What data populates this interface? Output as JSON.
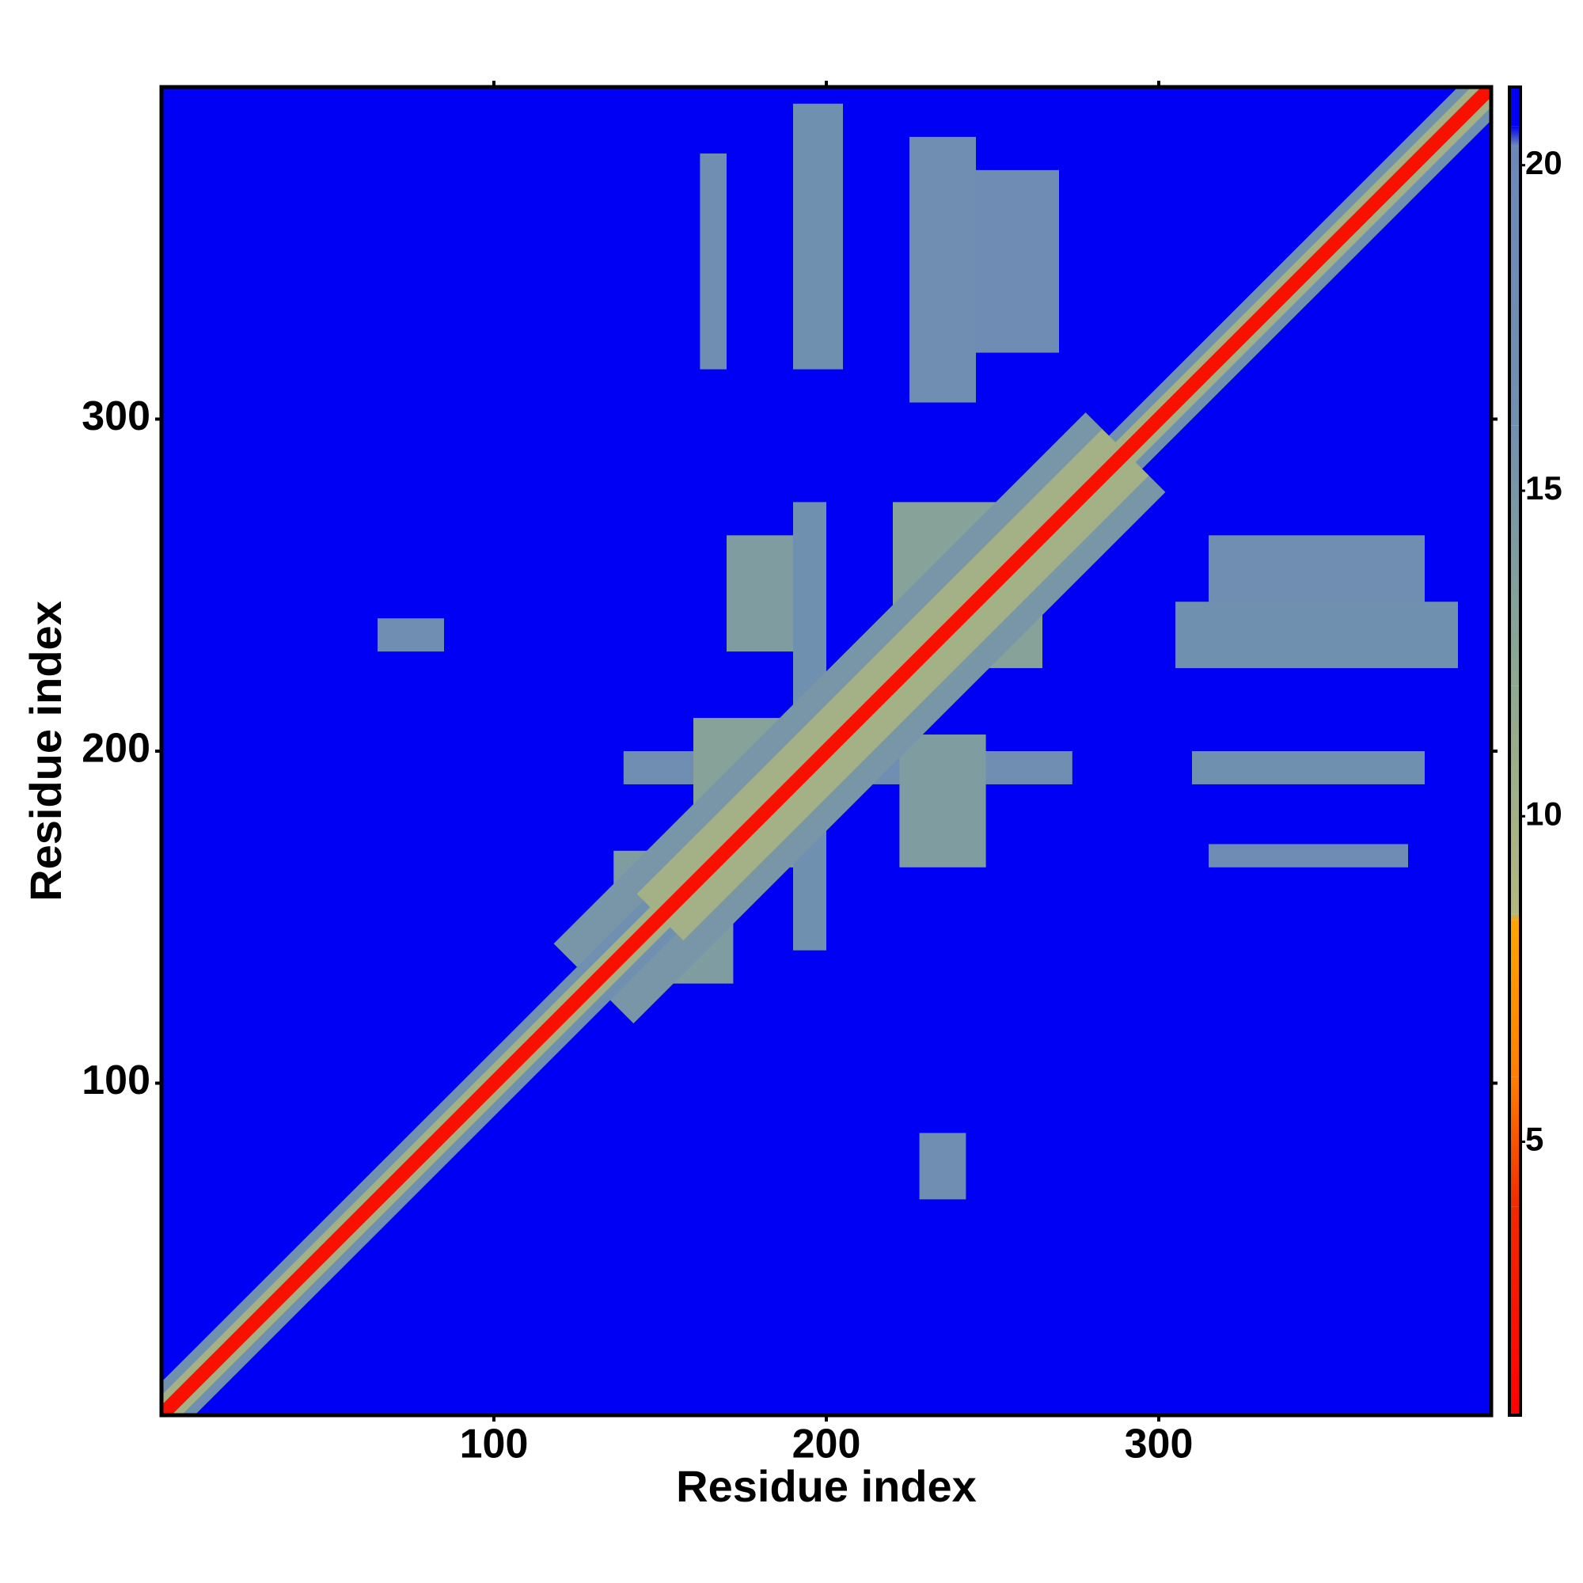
{
  "chart_data": {
    "type": "heatmap",
    "xlabel": "Residue index",
    "ylabel": "Residue index",
    "xlim": [
      0,
      400
    ],
    "ylim": [
      0,
      400
    ],
    "xticks": [
      100,
      200,
      300
    ],
    "yticks": [
      100,
      200,
      300
    ],
    "background": 21,
    "colorbar": {
      "lim": [
        0.8,
        21.2
      ],
      "ticks": [
        5,
        10,
        15,
        20
      ],
      "stops": [
        {
          "value": 0.8,
          "color": "#ff0000"
        },
        {
          "value": 4,
          "color": "#f02a00"
        },
        {
          "value": 6,
          "color": "#ff7f00"
        },
        {
          "value": 8.4,
          "color": "#ffa500"
        },
        {
          "value": 8.5,
          "color": "#b4b87e"
        },
        {
          "value": 12,
          "color": "#8ea890"
        },
        {
          "value": 16,
          "color": "#7090b0"
        },
        {
          "value": 20.3,
          "color": "#6c88b8"
        },
        {
          "value": 20.6,
          "color": "#0000f5"
        },
        {
          "value": 21.2,
          "color": "#0000f5"
        }
      ]
    },
    "diagonal": [
      {
        "from": 130,
        "to": 290,
        "halfwidth": 12,
        "value": 15
      },
      {
        "from": 0,
        "to": 400,
        "halfwidth": 5,
        "value": 16
      },
      {
        "from": 150,
        "to": 290,
        "halfwidth": 7,
        "value": 10
      },
      {
        "from": 0,
        "to": 400,
        "halfwidth": 3,
        "value": 10
      },
      {
        "from": 0,
        "to": 400,
        "halfwidth": 1.5,
        "value": 2
      }
    ],
    "regions": [
      {
        "x": [
          162,
          170
        ],
        "y": [
          315,
          380
        ],
        "value": 17
      },
      {
        "x": [
          190,
          205
        ],
        "y": [
          315,
          395
        ],
        "value": 16
      },
      {
        "x": [
          225,
          245
        ],
        "y": [
          305,
          385
        ],
        "value": 17
      },
      {
        "x": [
          245,
          270
        ],
        "y": [
          320,
          375
        ],
        "value": 18
      },
      {
        "x": [
          315,
          380
        ],
        "y": [
          230,
          265
        ],
        "value": 17
      },
      {
        "x": [
          305,
          390
        ],
        "y": [
          225,
          245
        ],
        "value": 16
      },
      {
        "x": [
          310,
          380
        ],
        "y": [
          190,
          200
        ],
        "value": 16
      },
      {
        "x": [
          315,
          375
        ],
        "y": [
          165,
          172
        ],
        "value": 18
      },
      {
        "x": [
          65,
          85
        ],
        "y": [
          230,
          240
        ],
        "value": 17
      },
      {
        "x": [
          228,
          242
        ],
        "y": [
          65,
          85
        ],
        "value": 17
      },
      {
        "x": [
          139,
          274
        ],
        "y": [
          190,
          200
        ],
        "value": 17
      },
      {
        "x": [
          160,
          200
        ],
        "y": [
          165,
          210
        ],
        "value": 13
      },
      {
        "x": [
          170,
          200
        ],
        "y": [
          230,
          265
        ],
        "value": 14
      },
      {
        "x": [
          222,
          248
        ],
        "y": [
          165,
          205
        ],
        "value": 14
      },
      {
        "x": [
          220,
          265
        ],
        "y": [
          225,
          275
        ],
        "value": 13
      },
      {
        "x": [
          136,
          172
        ],
        "y": [
          130,
          170
        ],
        "value": 14
      },
      {
        "x": [
          190,
          200
        ],
        "y": [
          140,
          275
        ],
        "value": 16
      }
    ]
  }
}
